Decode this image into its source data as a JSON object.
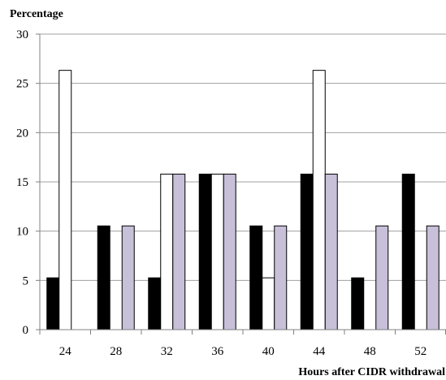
{
  "chart_data": {
    "type": "bar",
    "title": "",
    "ylabel": "Percentage",
    "xlabel": "Hours after CIDR withdrawal",
    "categories": [
      "24",
      "28",
      "32",
      "36",
      "40",
      "44",
      "48",
      "52"
    ],
    "ylim": [
      0,
      30
    ],
    "yticks": [
      "0",
      "5",
      "10",
      "15",
      "20",
      "25",
      "30"
    ],
    "grid": true,
    "legend": "none",
    "series": [
      {
        "color": "#000000",
        "values": [
          5.26,
          10.53,
          5.26,
          15.79,
          10.53,
          15.79,
          5.26,
          15.79
        ]
      },
      {
        "color": "#ffffff",
        "values": [
          26.32,
          0,
          15.79,
          15.79,
          5.26,
          26.32,
          0,
          0
        ]
      },
      {
        "color": "#c8bfd9",
        "values": [
          0,
          10.53,
          15.79,
          15.79,
          10.53,
          15.79,
          10.53,
          10.53
        ]
      }
    ]
  }
}
